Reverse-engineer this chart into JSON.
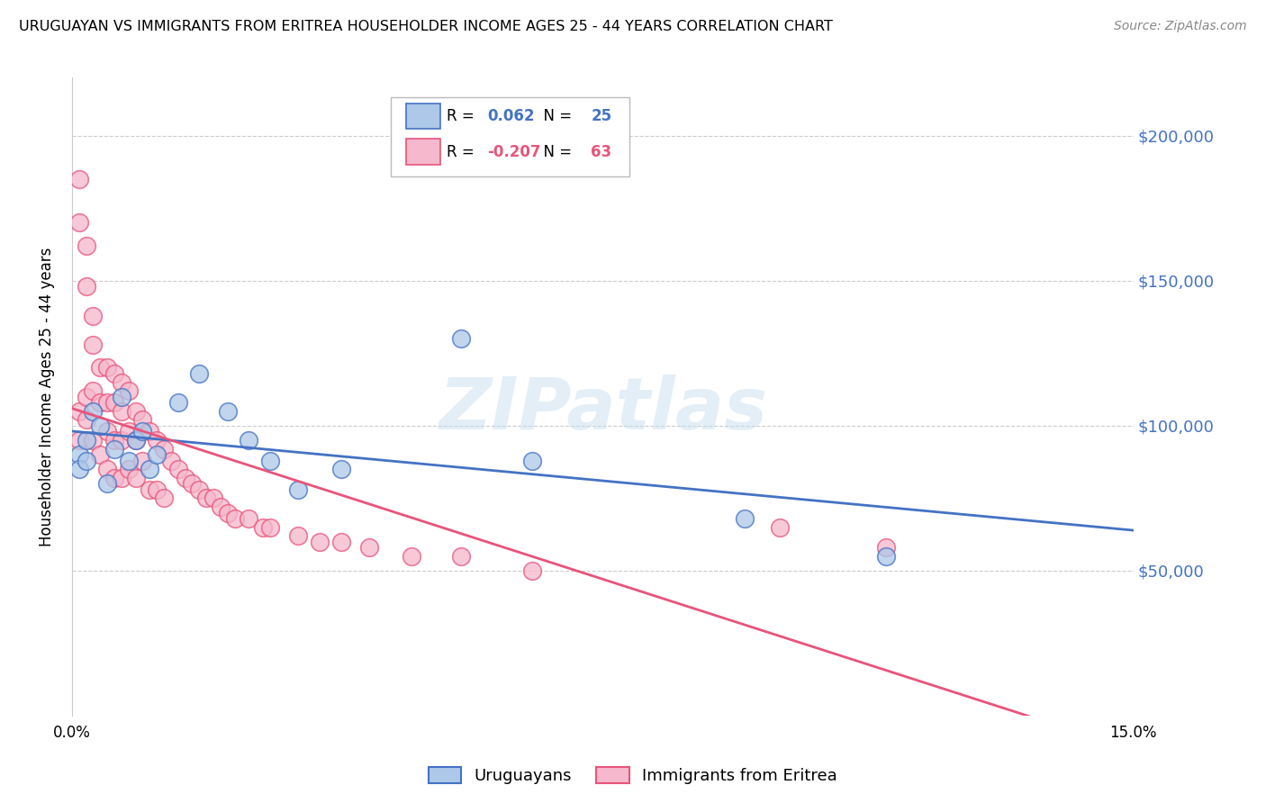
{
  "title": "URUGUAYAN VS IMMIGRANTS FROM ERITREA HOUSEHOLDER INCOME AGES 25 - 44 YEARS CORRELATION CHART",
  "source": "Source: ZipAtlas.com",
  "ylabel": "Householder Income Ages 25 - 44 years",
  "xlim": [
    0.0,
    0.15
  ],
  "ylim": [
    0,
    220000
  ],
  "ytick_right_values": [
    50000,
    100000,
    150000,
    200000
  ],
  "uruguayan_R": 0.062,
  "uruguayan_N": 25,
  "eritrea_R": -0.207,
  "eritrea_N": 63,
  "uruguayan_color": "#adc8e8",
  "eritrea_color": "#f5b8cc",
  "line_uruguayan_color": "#4472c4",
  "line_eritrea_color": "#e8547a",
  "uruguayan_x": [
    0.001,
    0.001,
    0.002,
    0.002,
    0.003,
    0.004,
    0.005,
    0.006,
    0.007,
    0.008,
    0.009,
    0.01,
    0.011,
    0.012,
    0.015,
    0.018,
    0.022,
    0.025,
    0.028,
    0.032,
    0.038,
    0.055,
    0.065,
    0.095,
    0.115
  ],
  "uruguayan_y": [
    90000,
    85000,
    95000,
    88000,
    105000,
    100000,
    80000,
    92000,
    110000,
    88000,
    95000,
    98000,
    85000,
    90000,
    108000,
    118000,
    105000,
    95000,
    88000,
    78000,
    85000,
    130000,
    88000,
    68000,
    55000
  ],
  "eritrea_x": [
    0.001,
    0.001,
    0.001,
    0.001,
    0.002,
    0.002,
    0.002,
    0.002,
    0.003,
    0.003,
    0.003,
    0.003,
    0.004,
    0.004,
    0.004,
    0.005,
    0.005,
    0.005,
    0.005,
    0.006,
    0.006,
    0.006,
    0.006,
    0.007,
    0.007,
    0.007,
    0.007,
    0.008,
    0.008,
    0.008,
    0.009,
    0.009,
    0.009,
    0.01,
    0.01,
    0.011,
    0.011,
    0.012,
    0.012,
    0.013,
    0.013,
    0.014,
    0.015,
    0.016,
    0.017,
    0.018,
    0.019,
    0.02,
    0.021,
    0.022,
    0.023,
    0.025,
    0.027,
    0.028,
    0.032,
    0.035,
    0.038,
    0.042,
    0.048,
    0.055,
    0.065,
    0.1,
    0.115
  ],
  "eritrea_y": [
    185000,
    170000,
    105000,
    95000,
    162000,
    148000,
    110000,
    102000,
    138000,
    128000,
    112000,
    95000,
    120000,
    108000,
    90000,
    120000,
    108000,
    98000,
    85000,
    118000,
    108000,
    95000,
    82000,
    115000,
    105000,
    95000,
    82000,
    112000,
    98000,
    85000,
    105000,
    95000,
    82000,
    102000,
    88000,
    98000,
    78000,
    95000,
    78000,
    92000,
    75000,
    88000,
    85000,
    82000,
    80000,
    78000,
    75000,
    75000,
    72000,
    70000,
    68000,
    68000,
    65000,
    65000,
    62000,
    60000,
    60000,
    58000,
    55000,
    55000,
    50000,
    65000,
    58000
  ]
}
